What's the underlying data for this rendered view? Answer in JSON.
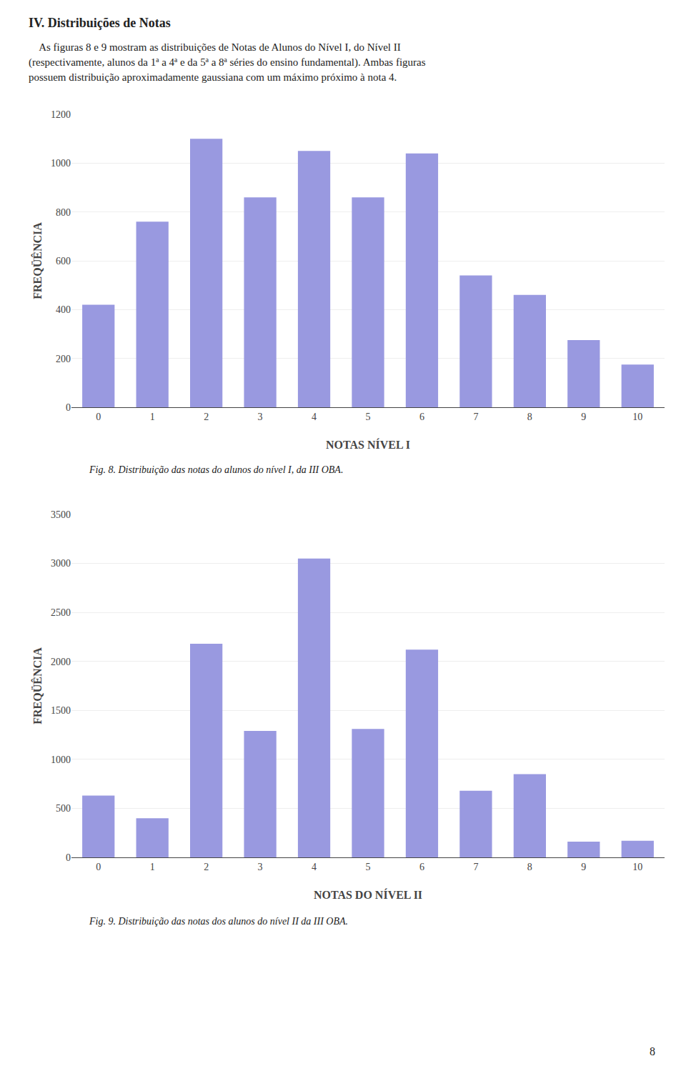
{
  "title": "IV. Distribuições de Notas",
  "text": [
    "    As figuras 8 e 9 mostram as distribuições de Notas de Alunos do Nível I, do Nível II",
    "(respectivamente, alunos da 1ª a 4ª e da 5ª a 8ª séries do ensino fundamental). Ambas figuras",
    "possuem distribuição aproximadamente gaussiana com um máximo próximo à nota 4."
  ],
  "page_number": "8",
  "chart_data": [
    {
      "type": "bar",
      "x": [
        0,
        1,
        2,
        3,
        4,
        5,
        6,
        7,
        8,
        9,
        10
      ],
      "values": [
        420,
        760,
        1100,
        860,
        1050,
        860,
        1040,
        540,
        460,
        275,
        175
      ],
      "xlabel": "NOTAS NÍVEL I",
      "ylabel": "FREQÜÊNCIA",
      "xlim": [
        -0.5,
        10.5
      ],
      "xticks": [
        0,
        1,
        2,
        3,
        4,
        5,
        6,
        7,
        8,
        9,
        10
      ],
      "ylim": [
        0,
        1200
      ],
      "yticks": [
        0,
        200,
        400,
        600,
        800,
        1000,
        1200
      ],
      "grid": true,
      "color": "#9999e0",
      "caption": "Fig. 8. Distribuição das notas do alunos do nível I, da III OBA."
    },
    {
      "type": "bar",
      "x": [
        0,
        1,
        2,
        3,
        4,
        5,
        6,
        7,
        8,
        9,
        10
      ],
      "values": [
        630,
        400,
        2180,
        1290,
        3050,
        1310,
        2120,
        680,
        850,
        160,
        170
      ],
      "xlabel": "NOTAS DO NÍVEL II",
      "ylabel": "FREQÜÊNCIA",
      "xlim": [
        -0.5,
        10.5
      ],
      "xticks": [
        0,
        1,
        2,
        3,
        4,
        5,
        6,
        7,
        8,
        9,
        10
      ],
      "ylim": [
        0,
        3500
      ],
      "yticks": [
        0,
        500,
        1000,
        1500,
        2000,
        2500,
        3000,
        3500
      ],
      "grid": true,
      "color": "#9999e0",
      "caption": "Fig. 9. Distribuição das notas dos alunos do nível II da III OBA."
    }
  ]
}
